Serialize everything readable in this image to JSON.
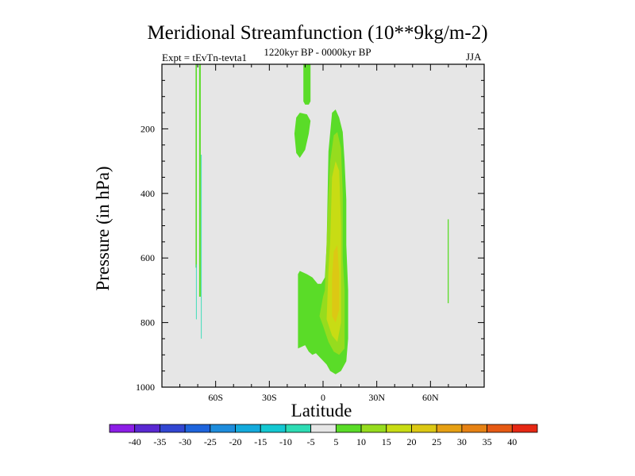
{
  "chart_data": {
    "type": "heatmap",
    "title": "Meridional Streamfunction (10**9kg/m-2)",
    "subtitle_left": "Expt = tEvTn-tevta1",
    "subtitle_center": "1220kyr BP - 0000kyr BP",
    "subtitle_right": "JJA",
    "xlabel": "Latitude",
    "ylabel": "Pressure (in hPa)",
    "xlim": [
      -90,
      90
    ],
    "ylim": [
      1000,
      0
    ],
    "x_ticks": [
      {
        "value": -60,
        "label": "60S"
      },
      {
        "value": -30,
        "label": "30S"
      },
      {
        "value": 0,
        "label": "0"
      },
      {
        "value": 30,
        "label": "30N"
      },
      {
        "value": 60,
        "label": "60N"
      }
    ],
    "y_ticks": [
      {
        "value": 200,
        "label": "200"
      },
      {
        "value": 400,
        "label": "400"
      },
      {
        "value": 600,
        "label": "600"
      },
      {
        "value": 800,
        "label": "800"
      },
      {
        "value": 1000,
        "label": "1000"
      }
    ],
    "background_color": "#e6e6e6",
    "colorbar": {
      "levels": [
        -40,
        -35,
        -30,
        -25,
        -20,
        -15,
        -10,
        -5,
        5,
        10,
        15,
        20,
        25,
        30,
        35,
        40
      ],
      "labels": [
        "-40",
        "-35",
        "-30",
        "-25",
        "-20",
        "-15",
        "-10",
        "-5",
        "5",
        "10",
        "15",
        "20",
        "25",
        "30",
        "35",
        "40"
      ],
      "colors": [
        "#8c1ee6",
        "#5a28d2",
        "#3246d2",
        "#1e64dc",
        "#1e8cdc",
        "#14aadc",
        "#14c8d2",
        "#2ddcb4",
        "#e6e6e6",
        "#5adc28",
        "#96dc1e",
        "#c8dc14",
        "#dcc814",
        "#e6a014",
        "#e68214",
        "#e65a14",
        "#e62814"
      ]
    },
    "regions": [
      {
        "name": "green-upper-sh",
        "level": 5,
        "points": [
          [
            -11,
            0
          ],
          [
            -7,
            0
          ],
          [
            -7,
            115
          ],
          [
            -8,
            125
          ],
          [
            -10,
            125
          ],
          [
            -11,
            115
          ]
        ]
      },
      {
        "name": "green-blob-sh",
        "level": 5,
        "points": [
          [
            -15,
            165
          ],
          [
            -13,
            150
          ],
          [
            -9,
            155
          ],
          [
            -7,
            175
          ],
          [
            -8,
            215
          ],
          [
            -10,
            265
          ],
          [
            -13,
            290
          ],
          [
            -15,
            275
          ],
          [
            -16,
            215
          ]
        ]
      },
      {
        "name": "green-main-cell",
        "level": 5,
        "points": [
          [
            3,
            270
          ],
          [
            5,
            150
          ],
          [
            7,
            140
          ],
          [
            9,
            165
          ],
          [
            11,
            210
          ],
          [
            12,
            300
          ],
          [
            13,
            420
          ],
          [
            13,
            560
          ],
          [
            14,
            700
          ],
          [
            14,
            850
          ],
          [
            13,
            920
          ],
          [
            10,
            950
          ],
          [
            7,
            960
          ],
          [
            4,
            950
          ],
          [
            2,
            930
          ],
          [
            -4,
            895
          ],
          [
            -6,
            900
          ],
          [
            -8,
            890
          ],
          [
            -9,
            880
          ],
          [
            -10,
            870
          ],
          [
            -14,
            880
          ],
          [
            -14,
            800
          ],
          [
            -14,
            650
          ],
          [
            -13,
            640
          ],
          [
            -9,
            650
          ],
          [
            -6,
            660
          ],
          [
            -3,
            680
          ],
          [
            -1,
            680
          ],
          [
            1,
            660
          ],
          [
            2,
            560
          ]
        ]
      },
      {
        "name": "lime-core",
        "level": 10,
        "points": [
          [
            4,
            300
          ],
          [
            6,
            220
          ],
          [
            8,
            210
          ],
          [
            10,
            260
          ],
          [
            11,
            400
          ],
          [
            11,
            600
          ],
          [
            12,
            700
          ],
          [
            12,
            880
          ],
          [
            9,
            900
          ],
          [
            6,
            890
          ],
          [
            3,
            860
          ],
          [
            0,
            810
          ],
          [
            -2,
            780
          ],
          [
            0,
            720
          ],
          [
            1,
            700
          ],
          [
            2,
            550
          ],
          [
            3,
            400
          ]
        ]
      },
      {
        "name": "yellowgreen-core",
        "level": 15,
        "points": [
          [
            5,
            350
          ],
          [
            7,
            300
          ],
          [
            9,
            330
          ],
          [
            10,
            500
          ],
          [
            10,
            600
          ],
          [
            10,
            800
          ],
          [
            8,
            860
          ],
          [
            5,
            840
          ],
          [
            2,
            790
          ],
          [
            3,
            640
          ],
          [
            4,
            550
          ]
        ]
      },
      {
        "name": "gold-core",
        "level": 20,
        "points": [
          [
            6,
            580
          ],
          [
            8,
            560
          ],
          [
            9,
            650
          ],
          [
            9,
            760
          ],
          [
            7,
            800
          ],
          [
            5,
            780
          ],
          [
            5,
            660
          ]
        ]
      },
      {
        "name": "green-streak-sh-left",
        "level": 5,
        "points": [
          [
            -71.2,
            0
          ],
          [
            -70.5,
            0
          ],
          [
            -70.5,
            630
          ],
          [
            -71.2,
            630
          ]
        ]
      },
      {
        "name": "green-streak-sh-right",
        "level": 5,
        "points": [
          [
            -69.2,
            0
          ],
          [
            -68.3,
            0
          ],
          [
            -68.3,
            720
          ],
          [
            -69.2,
            720
          ]
        ]
      },
      {
        "name": "teal-streak-sh-a",
        "level": -5,
        "points": [
          [
            -71,
            620
          ],
          [
            -70.6,
            620
          ],
          [
            -70.6,
            790
          ],
          [
            -71,
            790
          ]
        ]
      },
      {
        "name": "teal-streak-sh-b",
        "level": -5,
        "points": [
          [
            -68.2,
            280
          ],
          [
            -67.8,
            280
          ],
          [
            -67.8,
            850
          ],
          [
            -68.2,
            850
          ]
        ]
      },
      {
        "name": "green-streak-nh",
        "level": 5,
        "points": [
          [
            69.6,
            480
          ],
          [
            70.2,
            480
          ],
          [
            70.2,
            740
          ],
          [
            69.6,
            740
          ]
        ]
      }
    ]
  }
}
